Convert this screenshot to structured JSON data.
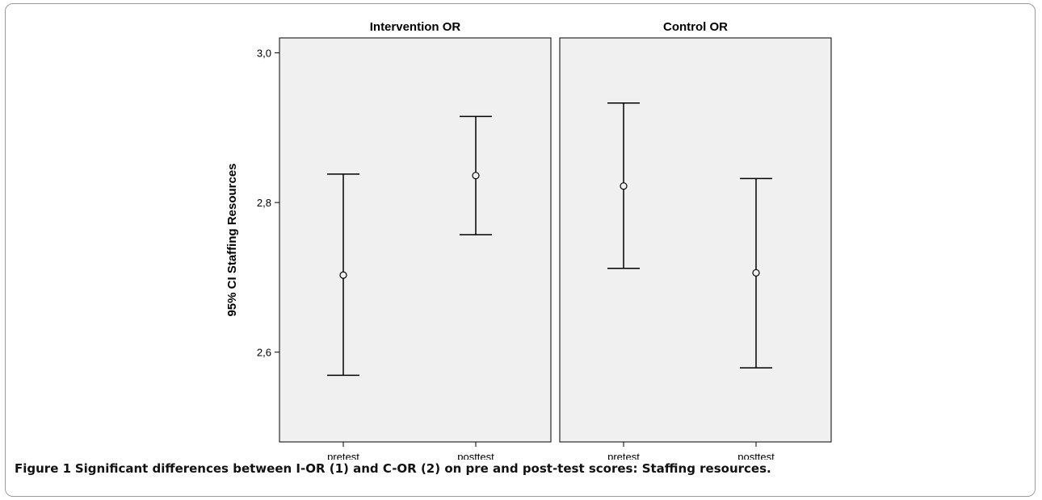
{
  "chart_data": {
    "type": "errorbar",
    "ylabel": "95% CI Staffing Resources",
    "ylim": [
      2.48,
      3.02
    ],
    "yticks": [
      2.6,
      2.8,
      3.0
    ],
    "ytick_labels": [
      "2,6",
      "2,8",
      "3,0"
    ],
    "categories": [
      "pretest",
      "posttest"
    ],
    "panels": [
      {
        "title": "Intervention OR",
        "points": [
          {
            "x": "pretest",
            "mean": 2.703,
            "lower": 2.569,
            "upper": 2.838
          },
          {
            "x": "posttest",
            "mean": 2.836,
            "lower": 2.757,
            "upper": 2.915
          }
        ]
      },
      {
        "title": "Control OR",
        "points": [
          {
            "x": "pretest",
            "mean": 2.822,
            "lower": 2.712,
            "upper": 2.933
          },
          {
            "x": "posttest",
            "mean": 2.706,
            "lower": 2.579,
            "upper": 2.832
          }
        ]
      }
    ],
    "grid": false,
    "panel_background": "#f0f0f0"
  },
  "caption": {
    "label": "Figure 1",
    "text": "Significant differences between I-OR (1) and C-OR (2) on pre and post-test scores: Staffing resources."
  }
}
